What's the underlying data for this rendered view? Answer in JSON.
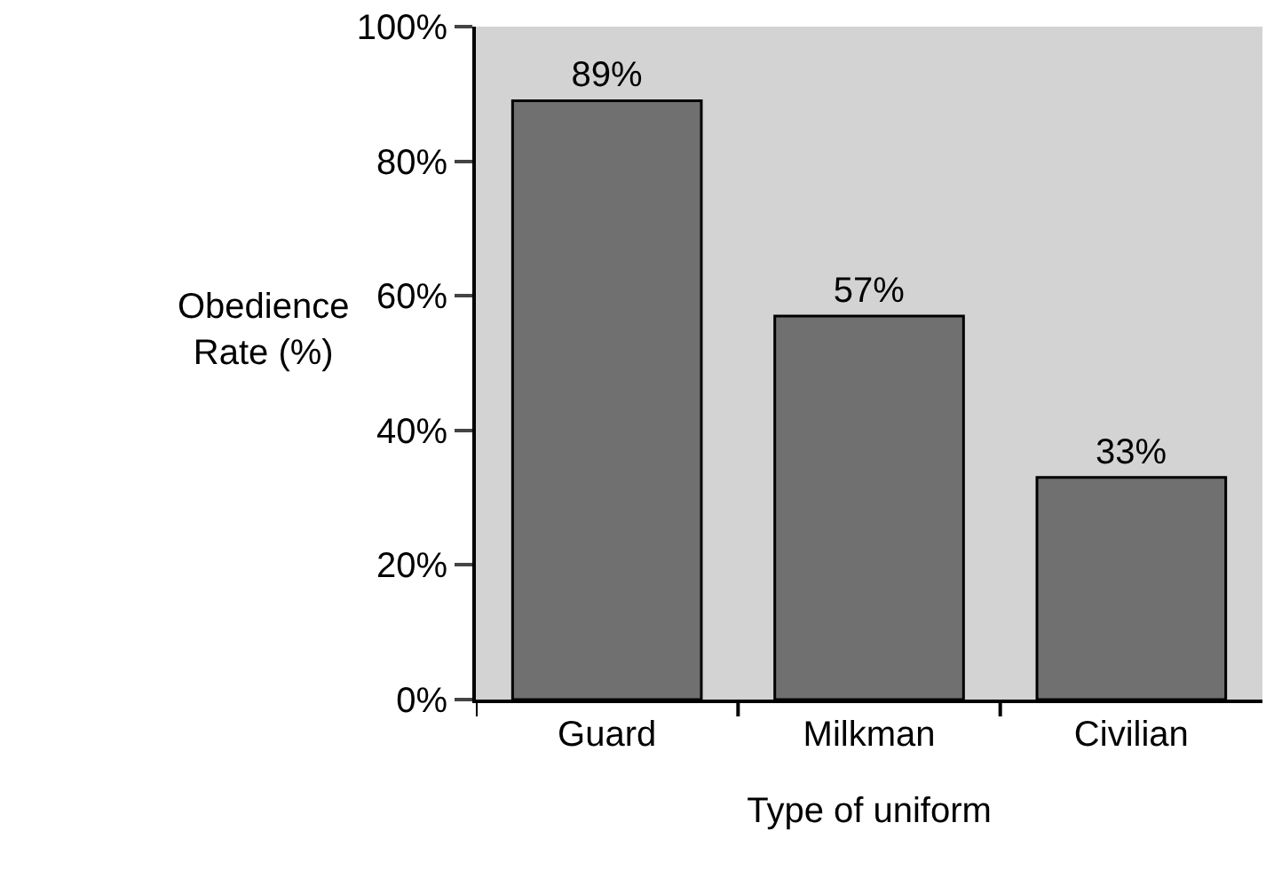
{
  "chart_data": {
    "type": "bar",
    "xlabel": "Type of uniform",
    "ylabel": "Obedience\nRate (%)",
    "categories": [
      "Guard",
      "Milkman",
      "Civilian"
    ],
    "values": [
      89,
      57,
      33
    ],
    "color": "#707070",
    "value_labels": [
      "89%",
      "57%",
      "33%"
    ],
    "ylim": [
      0,
      100
    ],
    "yticks": [
      {
        "value": 0,
        "label": "0%"
      },
      {
        "value": 20,
        "label": "20%"
      },
      {
        "value": 40,
        "label": "40%"
      },
      {
        "value": 60,
        "label": "60%"
      },
      {
        "value": 80,
        "label": "80%"
      },
      {
        "value": 100,
        "label": "100%"
      }
    ],
    "grid": false,
    "legend": false
  }
}
